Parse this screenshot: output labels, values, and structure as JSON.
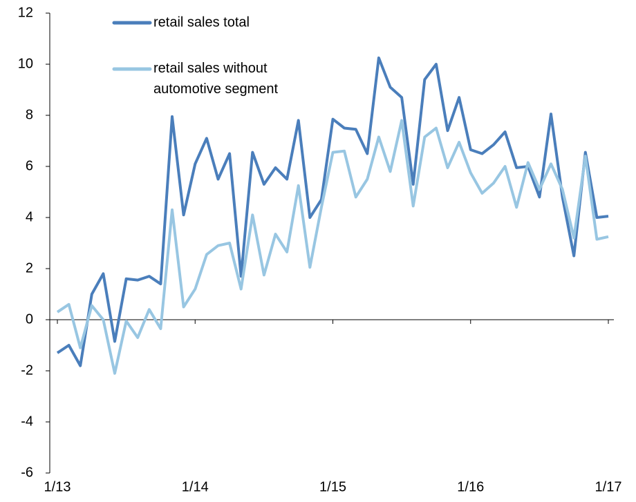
{
  "chart_data": {
    "type": "line",
    "categories": [
      "1/13",
      null,
      null,
      null,
      null,
      null,
      null,
      null,
      null,
      null,
      null,
      null,
      "1/14",
      null,
      null,
      null,
      null,
      null,
      null,
      null,
      null,
      null,
      null,
      null,
      "1/15",
      null,
      null,
      null,
      null,
      null,
      null,
      null,
      null,
      null,
      null,
      null,
      "1/16",
      null,
      null,
      null,
      null,
      null,
      null,
      null,
      null,
      null,
      null,
      null,
      "1/17"
    ],
    "series": [
      {
        "name": "retail sales total",
        "color": "#4a7ebb",
        "values": [
          -1.3,
          -1.0,
          -1.8,
          1.0,
          1.8,
          -0.85,
          1.6,
          1.55,
          1.7,
          1.4,
          7.95,
          4.1,
          6.1,
          7.1,
          5.5,
          6.5,
          1.7,
          6.55,
          5.3,
          5.95,
          5.5,
          7.8,
          4.0,
          4.7,
          7.85,
          7.5,
          7.45,
          6.5,
          10.25,
          9.1,
          8.7,
          5.3,
          9.4,
          10.0,
          7.4,
          8.7,
          6.65,
          6.5,
          6.85,
          7.35,
          5.95,
          6.0,
          4.8,
          8.05,
          4.8,
          2.5,
          6.55,
          4.0,
          4.05
        ]
      },
      {
        "name": "retail sales without automotive segment",
        "color": "#98c6e2",
        "values": [
          0.3,
          0.6,
          -1.1,
          0.55,
          0.0,
          -2.1,
          -0.05,
          -0.7,
          0.4,
          -0.35,
          4.3,
          0.5,
          1.2,
          2.55,
          2.9,
          3.0,
          1.2,
          4.1,
          1.75,
          3.35,
          2.65,
          5.25,
          2.05,
          4.4,
          6.55,
          6.6,
          4.8,
          5.5,
          7.15,
          5.8,
          7.8,
          4.45,
          7.15,
          7.5,
          5.95,
          6.95,
          5.75,
          4.95,
          5.35,
          6.0,
          4.4,
          6.15,
          5.1,
          6.1,
          5.1,
          3.2,
          6.4,
          3.15,
          3.25
        ]
      }
    ],
    "ylim": [
      -6,
      12
    ],
    "yticks": [
      -6,
      -4,
      -2,
      0,
      2,
      4,
      6,
      8,
      10,
      12
    ],
    "legend": "top-left",
    "grid": false
  }
}
